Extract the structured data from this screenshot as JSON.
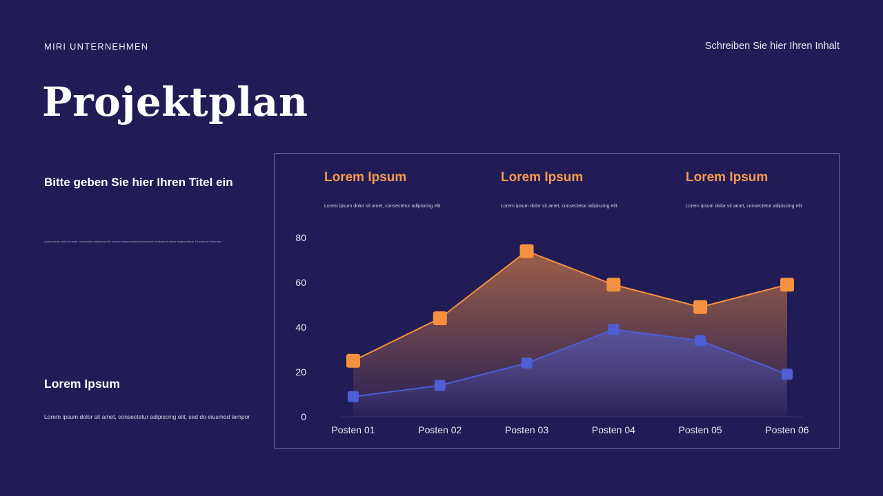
{
  "meta": {
    "background_color": "#211c55",
    "accent_orange": "#f79a4d",
    "accent_blue": "#4d5ed6"
  },
  "header": {
    "company": "MIRI UNTERNEHMEN",
    "right_note": "Schreiben Sie hier Ihren Inhalt"
  },
  "title": "Projektplan",
  "left_column": {
    "subtitle": "Bitte geben Sie hier Ihren Titel ein",
    "fine_print": "Lorem ipsum dolor sit amet, consectetur adipiscing elit, sed do eiusmod tempor incididunt ut labore et dolore magna aliqua. Ut enim ad minim veniam, quis nostrud exercitation ullamco laboris nisi ut aliquip ex ea commodo consequat duis aute irure dolor.",
    "lorem_heading": "Lorem Ipsum",
    "lorem_body": "Lorem ipsum dolor sit amet, consectetur adipiscing elit, sed do eiusmod tempor"
  },
  "panel": {
    "headers": [
      {
        "title": "Lorem Ipsum",
        "subtitle": "Lorem ipsum dolor sit amet, consectetur adipiscing elit"
      },
      {
        "title": "Lorem Ipsum",
        "subtitle": "Lorem ipsum dolor sit amet, consectetur adipiscing elit"
      },
      {
        "title": "Lorem Ipsum",
        "subtitle": "Lorem ipsum dolor sit amet, consectetur adipiscing elit"
      }
    ]
  },
  "chart_data": {
    "type": "area",
    "title": "",
    "xlabel": "",
    "ylabel": "",
    "categories": [
      "Posten 01",
      "Posten 02",
      "Posten 03",
      "Posten 04",
      "Posten 05",
      "Posten 06"
    ],
    "series": [
      {
        "name": "orange-series",
        "color": "#f6913f",
        "marker_size": 20,
        "values": [
          25,
          44,
          74,
          59,
          49,
          59
        ]
      },
      {
        "name": "blue-series",
        "color": "#4d5ed6",
        "marker_size": 16,
        "values": [
          9,
          14,
          24,
          39,
          34,
          19
        ]
      }
    ],
    "yticks": [
      0,
      20,
      40,
      60,
      80
    ],
    "ylim": [
      0,
      80
    ],
    "grid": false,
    "legend_position": "none",
    "marker_shape": "square"
  }
}
